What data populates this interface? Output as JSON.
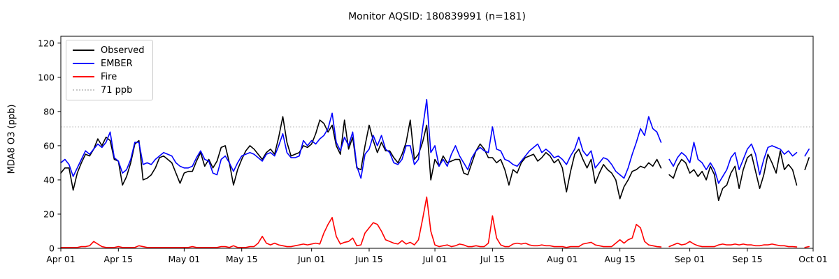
{
  "title": "Monitor AQSID: 180839991 (n=181)",
  "chart_data": {
    "type": "line",
    "title": "Monitor AQSID: 180839991 (n=181)",
    "xlabel": "",
    "ylabel": "MDA8 O3 (ppb)",
    "ylim": [
      0,
      124
    ],
    "yticks": [
      0,
      20,
      40,
      60,
      80,
      100,
      120
    ],
    "grid": false,
    "legend_position": "upper left",
    "n_days": 183,
    "x_start": "Apr 01",
    "x_end": "Sep 30",
    "missing_days": [
      "Aug 26",
      "Sep 28"
    ],
    "xticks": [
      {
        "day": 0,
        "label": "Apr 01"
      },
      {
        "day": 14,
        "label": "Apr 15"
      },
      {
        "day": 30,
        "label": "May 01"
      },
      {
        "day": 44,
        "label": "May 15"
      },
      {
        "day": 61,
        "label": "Jun 01"
      },
      {
        "day": 75,
        "label": "Jun 15"
      },
      {
        "day": 91,
        "label": "Jul 01"
      },
      {
        "day": 105,
        "label": "Jul 15"
      },
      {
        "day": 122,
        "label": "Aug 01"
      },
      {
        "day": 136,
        "label": "Aug 15"
      },
      {
        "day": 153,
        "label": "Sep 01"
      },
      {
        "day": 167,
        "label": "Sep 15"
      },
      {
        "day": 183,
        "label": "Oct 01"
      }
    ],
    "reference_line": {
      "value": 71,
      "label": "71 ppb",
      "color": "#c8c8c8",
      "style": "dotted"
    },
    "series": [
      {
        "name": "Observed",
        "color": "#000000",
        "values": [
          44,
          47,
          47,
          34,
          44,
          50,
          55,
          54,
          58,
          64,
          60,
          65,
          63,
          52,
          51,
          37,
          42,
          50,
          61,
          63,
          40,
          41,
          43,
          47,
          53,
          54,
          52,
          50,
          44,
          38,
          44,
          45,
          45,
          51,
          56,
          48,
          52,
          47,
          51,
          59,
          60,
          50,
          37,
          46,
          52,
          57,
          60,
          58,
          55,
          52,
          56,
          58,
          55,
          65,
          77,
          62,
          54,
          55,
          56,
          60,
          59,
          61,
          67,
          75,
          73,
          68,
          72,
          60,
          55,
          75,
          58,
          65,
          47,
          46,
          60,
          72,
          63,
          56,
          62,
          57,
          57,
          53,
          50,
          55,
          62,
          75,
          52,
          55,
          62,
          72,
          40,
          52,
          48,
          54,
          50,
          51,
          52,
          52,
          44,
          43,
          50,
          57,
          61,
          58,
          53,
          53,
          50,
          52,
          46,
          37,
          46,
          44,
          50,
          53,
          54,
          55,
          51,
          53,
          56,
          54,
          50,
          52,
          47,
          33,
          45,
          55,
          58,
          52,
          47,
          52,
          38,
          44,
          49,
          46,
          44,
          40,
          29,
          36,
          40,
          45,
          46,
          48,
          47,
          50,
          48,
          52,
          47,
          null,
          43,
          41,
          48,
          52,
          50,
          44,
          46,
          42,
          45,
          40,
          48,
          43,
          28,
          35,
          37,
          44,
          48,
          35,
          46,
          53,
          55,
          45,
          35,
          43,
          55,
          50,
          44,
          57,
          46,
          49,
          46,
          37,
          null,
          46,
          53
        ]
      },
      {
        "name": "EMBER",
        "color": "#0000ff",
        "values": [
          50,
          52,
          49,
          42,
          47,
          52,
          57,
          55,
          58,
          61,
          59,
          62,
          68,
          53,
          51,
          44,
          46,
          52,
          62,
          62,
          49,
          50,
          49,
          52,
          54,
          56,
          55,
          54,
          50,
          48,
          47,
          47,
          48,
          53,
          57,
          52,
          51,
          44,
          43,
          52,
          54,
          50,
          45,
          50,
          54,
          55,
          56,
          55,
          53,
          51,
          55,
          56,
          54,
          60,
          67,
          56,
          53,
          53,
          54,
          63,
          60,
          63,
          61,
          64,
          66,
          70,
          79,
          62,
          57,
          65,
          60,
          68,
          48,
          41,
          55,
          58,
          66,
          60,
          66,
          58,
          56,
          50,
          49,
          52,
          60,
          60,
          49,
          52,
          70,
          87,
          56,
          60,
          48,
          52,
          48,
          55,
          60,
          54,
          50,
          46,
          53,
          57,
          59,
          57,
          56,
          71,
          58,
          57,
          52,
          51,
          49,
          48,
          51,
          54,
          57,
          59,
          61,
          56,
          58,
          56,
          53,
          54,
          52,
          49,
          54,
          58,
          65,
          57,
          54,
          57,
          47,
          50,
          53,
          52,
          49,
          45,
          43,
          41,
          47,
          55,
          62,
          70,
          66,
          77,
          70,
          68,
          62,
          null,
          52,
          48,
          53,
          56,
          54,
          50,
          62,
          52,
          50,
          46,
          50,
          46,
          38,
          42,
          46,
          53,
          56,
          46,
          52,
          58,
          61,
          55,
          43,
          52,
          59,
          60,
          59,
          58,
          55,
          57,
          54,
          56,
          null,
          54,
          58
        ]
      },
      {
        "name": "Fire",
        "color": "#ff0000",
        "values": [
          0.5,
          0.5,
          0.5,
          0.5,
          0.5,
          1,
          1,
          1.5,
          4,
          2.5,
          1,
          0.5,
          0.5,
          0.5,
          1,
          0.5,
          0.5,
          0.5,
          0.5,
          1.5,
          1,
          0.5,
          0.5,
          0.5,
          0.5,
          0.5,
          0.5,
          0.5,
          0.5,
          0.5,
          0.5,
          0.5,
          1,
          0.5,
          0.5,
          0.5,
          0.5,
          0.5,
          0.5,
          1,
          1,
          0.5,
          1.5,
          0.5,
          0.5,
          0.5,
          1,
          1,
          3,
          7,
          3,
          2,
          3,
          2,
          1.5,
          1,
          1,
          1.5,
          2,
          2.5,
          2,
          2.5,
          3,
          2.5,
          9,
          14,
          18,
          7,
          2.5,
          3.5,
          4,
          6,
          1.5,
          2,
          9,
          12,
          15,
          14,
          10,
          5,
          4,
          3,
          2.5,
          4.5,
          2.5,
          3.5,
          2,
          5,
          17,
          30,
          10,
          2,
          1,
          1.5,
          2,
          1,
          1.5,
          2.5,
          2,
          1,
          1,
          1.5,
          1,
          1,
          3,
          19,
          6,
          2,
          1,
          1,
          2.5,
          3,
          2.5,
          3,
          2,
          1.5,
          1.5,
          2,
          1.5,
          1.5,
          1,
          1,
          1,
          0.5,
          1,
          1,
          1,
          2.5,
          3,
          3.5,
          2,
          1.5,
          1,
          1,
          1,
          3,
          5,
          3,
          5,
          6,
          14,
          12,
          4,
          2,
          1.5,
          1,
          0.8,
          null,
          1,
          2,
          3,
          2,
          2.5,
          4,
          2.5,
          1.5,
          1,
          1,
          1,
          1,
          2,
          2.5,
          2,
          2,
          2.5,
          2,
          2.5,
          2,
          2,
          1.5,
          1.5,
          2,
          2,
          2.5,
          2,
          1.5,
          1.5,
          1,
          1,
          0.8,
          null,
          0.5,
          1
        ]
      }
    ]
  },
  "legend": {
    "observed_label": "Observed",
    "ember_label": "EMBER",
    "fire_label": "Fire",
    "refline_label": "71 ppb"
  }
}
